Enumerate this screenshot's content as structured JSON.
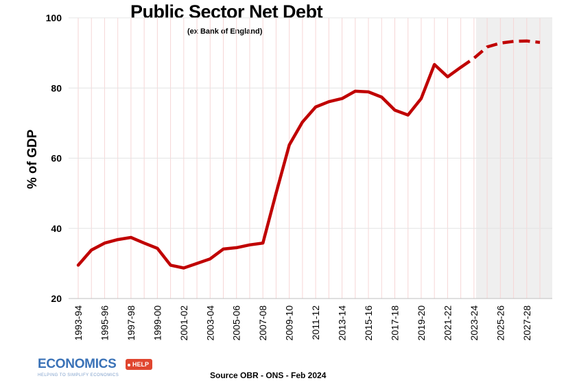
{
  "chart_data": {
    "type": "line",
    "title": "Public Sector Net Debt",
    "subtitle": "(ex Bank of England)",
    "ylabel": "% of GDP",
    "xlabel": "",
    "ylim": [
      20,
      100
    ],
    "yticks": [
      20,
      40,
      60,
      80,
      100
    ],
    "grid": "vertical faint lines per year",
    "legend": "none",
    "forecast_shading_start": "2023-24",
    "categories": [
      "1993-94",
      "1994-95",
      "1995-96",
      "1996-97",
      "1997-98",
      "1998-99",
      "1999-00",
      "2000-01",
      "2001-02",
      "2002-03",
      "2003-04",
      "2004-05",
      "2005-06",
      "2006-07",
      "2007-08",
      "2008-09",
      "2009-10",
      "2010-11",
      "2011-12",
      "2012-13",
      "2013-14",
      "2014-15",
      "2015-16",
      "2016-17",
      "2017-18",
      "2018-19",
      "2019-20",
      "2020-21",
      "2021-22",
      "2022-23",
      "2023-24",
      "2024-25",
      "2025-26",
      "2026-27",
      "2027-28",
      "2028-29"
    ],
    "tick_labels": [
      "1993-94",
      "1995-96",
      "1997-98",
      "1999-00",
      "2001-02",
      "2003-04",
      "2005-06",
      "2007-08",
      "2009-10",
      "2011-12",
      "2013-14",
      "2015-16",
      "2017-18",
      "2019-20",
      "2021-22",
      "2023-24",
      "2025-26",
      "2027-28"
    ],
    "series": [
      {
        "color": "#c00000",
        "actual_values": [
          29.5,
          33.8,
          35.8,
          36.8,
          37.4,
          35.8,
          34.3,
          29.5,
          28.7,
          30.0,
          31.3,
          34.1,
          34.5,
          35.3,
          35.8,
          50.0,
          63.8,
          70.3,
          74.6,
          76.1,
          77.0,
          79.1,
          78.9,
          77.4,
          73.7,
          72.3,
          77.0,
          86.7,
          83.2,
          85.9,
          null,
          null,
          null,
          null,
          null,
          null
        ],
        "forecast_values": [
          null,
          null,
          null,
          null,
          null,
          null,
          null,
          null,
          null,
          null,
          null,
          null,
          null,
          null,
          null,
          null,
          null,
          null,
          null,
          null,
          null,
          null,
          null,
          null,
          null,
          null,
          null,
          null,
          null,
          85.9,
          88.5,
          91.7,
          92.8,
          93.3,
          93.4,
          93.0
        ]
      }
    ]
  },
  "source_text": "Source OBR - ONS - Feb 2024",
  "logo": {
    "word": "ECONOMICS",
    "badge": "HELP",
    "tagline": "HELPING TO SIMPLIFY ECONOMICS"
  }
}
